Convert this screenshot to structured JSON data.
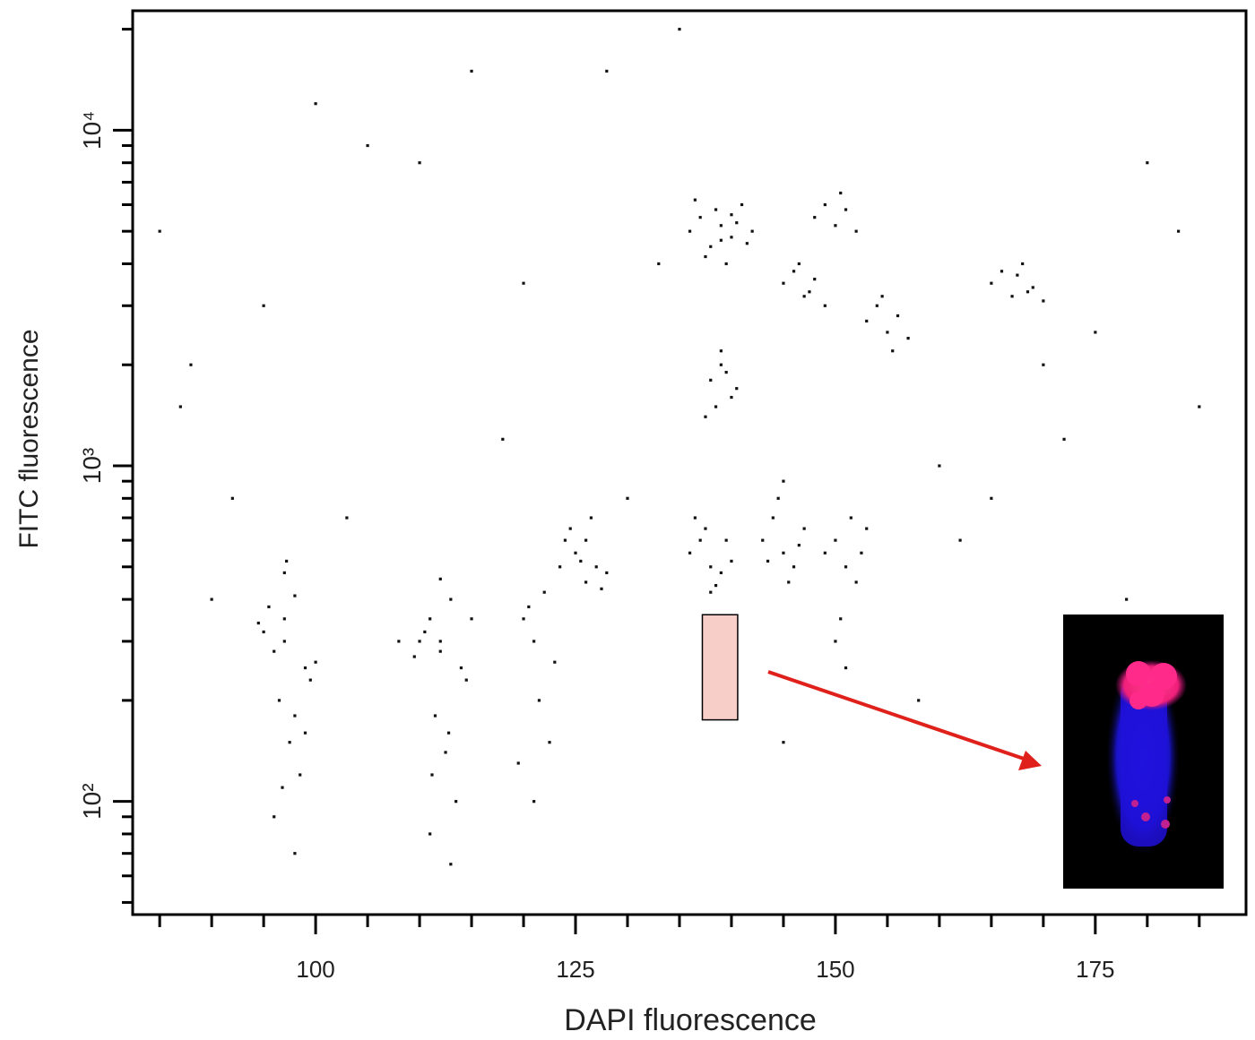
{
  "chart_data": {
    "type": "scatter",
    "x_label": "DAPI fluorescence",
    "y_label": "FITC fluorescence",
    "yscale": "log",
    "xlim": [
      82.4,
      189.5
    ],
    "ylim": [
      46,
      22700
    ],
    "xticks": [
      100,
      125,
      150,
      175
    ],
    "minor_xticks": [
      85,
      90,
      95,
      105,
      110,
      115,
      120,
      130,
      135,
      140,
      145,
      155,
      160,
      165,
      170,
      180,
      185
    ],
    "yticks": [
      {
        "value": 100,
        "label": "10²"
      },
      {
        "value": 1000,
        "label": "10³"
      },
      {
        "value": 10000,
        "label": "10⁴"
      }
    ],
    "minor_yticks": [
      50,
      60,
      70,
      80,
      90,
      200,
      300,
      400,
      500,
      600,
      700,
      800,
      900,
      2000,
      3000,
      4000,
      5000,
      6000,
      7000,
      8000,
      9000,
      20000
    ],
    "gate": {
      "x": [
        137.2,
        140.6
      ],
      "y": [
        175,
        360
      ],
      "color": "#f7c6c0"
    },
    "series": [
      {
        "color": "#111111",
        "x": [
          95,
          96,
          97,
          98,
          99,
          96.5,
          97.5,
          98.5,
          95.5,
          97,
          99.5,
          96,
          98,
          97,
          100,
          94.5,
          98,
          96.8,
          97.2,
          99,
          110,
          111,
          112,
          113,
          114,
          111.5,
          112.5,
          113.5,
          110.5,
          112,
          114.5,
          111,
          113,
          112,
          115,
          109.5,
          112.8,
          111.2,
          120,
          121,
          122,
          123,
          121.5,
          122.5,
          119.5,
          120.5,
          123.5,
          121,
          125,
          126,
          127,
          128,
          124.5,
          126.5,
          127.5,
          125.5,
          124,
          126,
          136,
          137,
          138,
          139,
          140,
          137.5,
          138.5,
          136.5,
          139.5,
          138,
          143,
          144,
          145,
          146,
          147,
          144.5,
          145.5,
          143.5,
          146.5,
          145,
          149,
          150,
          151,
          152,
          153,
          150.5,
          151.5,
          150,
          152.5,
          151,
          138,
          139,
          140,
          138.5,
          139.5,
          139,
          140.5,
          137.5,
          136,
          137,
          138,
          139,
          140,
          141,
          142,
          137.5,
          138.5,
          139.5,
          140.5,
          141.5,
          136.5,
          139,
          140,
          145,
          146,
          147,
          148,
          149,
          146.5,
          147.5,
          148,
          149,
          150,
          151,
          152,
          150.5,
          153,
          154,
          155,
          156,
          157,
          155.5,
          154.5,
          165,
          166,
          167,
          168,
          169,
          170,
          167.5,
          168.5,
          85,
          88,
          92,
          105,
          108,
          115,
          118,
          130,
          133,
          160,
          162,
          175,
          180,
          185,
          90,
          103,
          128,
          158,
          172,
          183,
          87,
          95,
          110,
          135,
          165,
          178,
          100,
          120,
          145,
          170
        ],
        "y": [
          320,
          280,
          350,
          410,
          250,
          200,
          150,
          120,
          380,
          480,
          230,
          90,
          70,
          300,
          260,
          340,
          180,
          110,
          520,
          160,
          300,
          350,
          280,
          400,
          250,
          180,
          140,
          100,
          320,
          460,
          230,
          80,
          65,
          300,
          350,
          270,
          160,
          120,
          350,
          300,
          420,
          260,
          200,
          150,
          130,
          380,
          500,
          100,
          550,
          600,
          500,
          480,
          650,
          700,
          430,
          520,
          600,
          450,
          550,
          600,
          500,
          480,
          520,
          650,
          440,
          700,
          600,
          420,
          600,
          700,
          550,
          500,
          650,
          800,
          450,
          520,
          580,
          900,
          550,
          600,
          500,
          450,
          650,
          350,
          700,
          300,
          550,
          250,
          1800,
          2000,
          1600,
          1500,
          1900,
          2200,
          1700,
          1400,
          5000,
          5500,
          4500,
          5200,
          4800,
          6000,
          5000,
          4200,
          5800,
          4000,
          5300,
          4600,
          6200,
          4700,
          5600,
          3500,
          3800,
          3200,
          3600,
          3000,
          4000,
          3300,
          5500,
          6000,
          5200,
          5800,
          5000,
          6500,
          2700,
          3000,
          2500,
          2800,
          2400,
          2200,
          3200,
          3500,
          3800,
          3200,
          4000,
          3400,
          3100,
          3700,
          3300,
          5000,
          2000,
          800,
          9000,
          300,
          15000,
          1200,
          800,
          4000,
          1000,
          600,
          2500,
          8000,
          1500,
          400,
          700,
          15000,
          200,
          1200,
          5000,
          1500,
          3000,
          8000,
          20000,
          800,
          400,
          12000,
          3500,
          150,
          2000
        ]
      }
    ]
  }
}
